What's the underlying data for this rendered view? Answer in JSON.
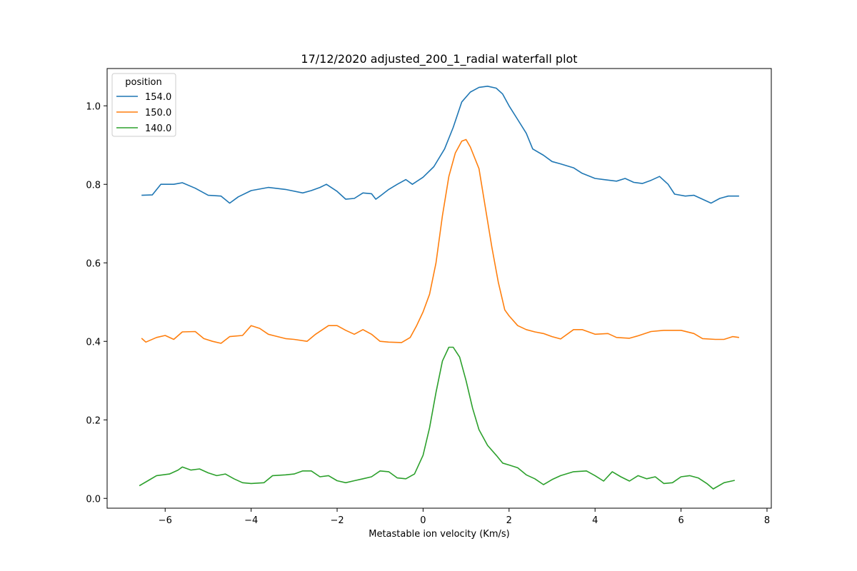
{
  "chart_data": {
    "type": "line",
    "title": "17/12/2020 adjusted_200_1_radial waterfall plot",
    "xlabel": "Metastable ion velocity (Km/s)",
    "ylabel": "",
    "xlim": [
      -7.35,
      8.1
    ],
    "ylim": [
      -0.025,
      1.095
    ],
    "xticks": [
      -6,
      -4,
      -2,
      0,
      2,
      4,
      6,
      8
    ],
    "xtick_labels": [
      "−6",
      "−4",
      "−2",
      "0",
      "2",
      "4",
      "6",
      "8"
    ],
    "yticks": [
      0.0,
      0.2,
      0.4,
      0.6,
      0.8,
      1.0
    ],
    "ytick_labels": [
      "0.0",
      "0.2",
      "0.4",
      "0.6",
      "0.8",
      "1.0"
    ],
    "grid": false,
    "legend": {
      "title": "position",
      "placement": "upper-left"
    },
    "series": [
      {
        "name": "154.0",
        "color": "#1f77b4",
        "points": [
          [
            -6.55,
            0.772
          ],
          [
            -6.3,
            0.773
          ],
          [
            -6.1,
            0.8
          ],
          [
            -5.8,
            0.8
          ],
          [
            -5.6,
            0.804
          ],
          [
            -5.3,
            0.79
          ],
          [
            -5.0,
            0.772
          ],
          [
            -4.7,
            0.77
          ],
          [
            -4.5,
            0.752
          ],
          [
            -4.3,
            0.768
          ],
          [
            -4.0,
            0.784
          ],
          [
            -3.6,
            0.792
          ],
          [
            -3.2,
            0.787
          ],
          [
            -2.8,
            0.778
          ],
          [
            -2.6,
            0.784
          ],
          [
            -2.4,
            0.792
          ],
          [
            -2.25,
            0.8
          ],
          [
            -2.0,
            0.782
          ],
          [
            -1.8,
            0.762
          ],
          [
            -1.6,
            0.764
          ],
          [
            -1.4,
            0.778
          ],
          [
            -1.2,
            0.776
          ],
          [
            -1.1,
            0.762
          ],
          [
            -1.0,
            0.77
          ],
          [
            -0.8,
            0.787
          ],
          [
            -0.6,
            0.8
          ],
          [
            -0.4,
            0.812
          ],
          [
            -0.25,
            0.8
          ],
          [
            0.0,
            0.818
          ],
          [
            0.25,
            0.845
          ],
          [
            0.5,
            0.89
          ],
          [
            0.7,
            0.945
          ],
          [
            0.9,
            1.01
          ],
          [
            1.1,
            1.035
          ],
          [
            1.3,
            1.047
          ],
          [
            1.5,
            1.05
          ],
          [
            1.7,
            1.045
          ],
          [
            1.85,
            1.03
          ],
          [
            2.0,
            1.0
          ],
          [
            2.2,
            0.965
          ],
          [
            2.4,
            0.93
          ],
          [
            2.55,
            0.89
          ],
          [
            2.8,
            0.874
          ],
          [
            3.0,
            0.858
          ],
          [
            3.2,
            0.852
          ],
          [
            3.5,
            0.842
          ],
          [
            3.7,
            0.828
          ],
          [
            4.0,
            0.815
          ],
          [
            4.2,
            0.812
          ],
          [
            4.5,
            0.808
          ],
          [
            4.7,
            0.815
          ],
          [
            4.9,
            0.805
          ],
          [
            5.1,
            0.802
          ],
          [
            5.3,
            0.81
          ],
          [
            5.5,
            0.82
          ],
          [
            5.7,
            0.8
          ],
          [
            5.85,
            0.775
          ],
          [
            6.1,
            0.77
          ],
          [
            6.3,
            0.772
          ],
          [
            6.5,
            0.762
          ],
          [
            6.7,
            0.752
          ],
          [
            6.9,
            0.764
          ],
          [
            7.1,
            0.77
          ],
          [
            7.35,
            0.77
          ]
        ]
      },
      {
        "name": "150.0",
        "color": "#ff7f0e",
        "points": [
          [
            -6.55,
            0.408
          ],
          [
            -6.45,
            0.398
          ],
          [
            -6.2,
            0.41
          ],
          [
            -6.0,
            0.415
          ],
          [
            -5.8,
            0.405
          ],
          [
            -5.6,
            0.424
          ],
          [
            -5.3,
            0.425
          ],
          [
            -5.1,
            0.407
          ],
          [
            -4.9,
            0.4
          ],
          [
            -4.7,
            0.395
          ],
          [
            -4.5,
            0.412
          ],
          [
            -4.2,
            0.415
          ],
          [
            -4.0,
            0.44
          ],
          [
            -3.8,
            0.433
          ],
          [
            -3.6,
            0.418
          ],
          [
            -3.2,
            0.407
          ],
          [
            -3.0,
            0.405
          ],
          [
            -2.7,
            0.4
          ],
          [
            -2.5,
            0.418
          ],
          [
            -2.2,
            0.44
          ],
          [
            -2.0,
            0.44
          ],
          [
            -1.8,
            0.428
          ],
          [
            -1.6,
            0.418
          ],
          [
            -1.4,
            0.43
          ],
          [
            -1.2,
            0.418
          ],
          [
            -1.0,
            0.4
          ],
          [
            -0.8,
            0.398
          ],
          [
            -0.5,
            0.397
          ],
          [
            -0.3,
            0.41
          ],
          [
            -0.15,
            0.44
          ],
          [
            0.0,
            0.475
          ],
          [
            0.15,
            0.52
          ],
          [
            0.3,
            0.6
          ],
          [
            0.45,
            0.72
          ],
          [
            0.6,
            0.82
          ],
          [
            0.75,
            0.88
          ],
          [
            0.9,
            0.91
          ],
          [
            1.0,
            0.914
          ],
          [
            1.1,
            0.895
          ],
          [
            1.3,
            0.84
          ],
          [
            1.45,
            0.74
          ],
          [
            1.6,
            0.64
          ],
          [
            1.75,
            0.55
          ],
          [
            1.9,
            0.48
          ],
          [
            2.0,
            0.465
          ],
          [
            2.2,
            0.44
          ],
          [
            2.4,
            0.43
          ],
          [
            2.6,
            0.424
          ],
          [
            2.8,
            0.42
          ],
          [
            3.0,
            0.412
          ],
          [
            3.2,
            0.406
          ],
          [
            3.5,
            0.43
          ],
          [
            3.7,
            0.43
          ],
          [
            4.0,
            0.418
          ],
          [
            4.3,
            0.42
          ],
          [
            4.5,
            0.41
          ],
          [
            4.8,
            0.408
          ],
          [
            5.0,
            0.414
          ],
          [
            5.3,
            0.425
          ],
          [
            5.6,
            0.428
          ],
          [
            6.0,
            0.428
          ],
          [
            6.3,
            0.42
          ],
          [
            6.5,
            0.407
          ],
          [
            6.8,
            0.405
          ],
          [
            7.0,
            0.405
          ],
          [
            7.2,
            0.412
          ],
          [
            7.35,
            0.41
          ]
        ]
      },
      {
        "name": "140.0",
        "color": "#2ca02c",
        "points": [
          [
            -6.6,
            0.032
          ],
          [
            -6.4,
            0.045
          ],
          [
            -6.2,
            0.058
          ],
          [
            -5.9,
            0.062
          ],
          [
            -5.7,
            0.072
          ],
          [
            -5.6,
            0.08
          ],
          [
            -5.4,
            0.072
          ],
          [
            -5.2,
            0.075
          ],
          [
            -5.0,
            0.065
          ],
          [
            -4.8,
            0.058
          ],
          [
            -4.6,
            0.062
          ],
          [
            -4.4,
            0.05
          ],
          [
            -4.2,
            0.04
          ],
          [
            -4.0,
            0.038
          ],
          [
            -3.7,
            0.04
          ],
          [
            -3.5,
            0.058
          ],
          [
            -3.2,
            0.06
          ],
          [
            -3.0,
            0.062
          ],
          [
            -2.8,
            0.07
          ],
          [
            -2.6,
            0.07
          ],
          [
            -2.4,
            0.055
          ],
          [
            -2.2,
            0.058
          ],
          [
            -2.0,
            0.045
          ],
          [
            -1.8,
            0.04
          ],
          [
            -1.6,
            0.045
          ],
          [
            -1.4,
            0.05
          ],
          [
            -1.2,
            0.055
          ],
          [
            -1.0,
            0.07
          ],
          [
            -0.8,
            0.068
          ],
          [
            -0.6,
            0.052
          ],
          [
            -0.4,
            0.05
          ],
          [
            -0.2,
            0.062
          ],
          [
            0.0,
            0.11
          ],
          [
            0.15,
            0.18
          ],
          [
            0.3,
            0.27
          ],
          [
            0.45,
            0.35
          ],
          [
            0.6,
            0.385
          ],
          [
            0.7,
            0.385
          ],
          [
            0.85,
            0.36
          ],
          [
            1.0,
            0.3
          ],
          [
            1.15,
            0.23
          ],
          [
            1.3,
            0.175
          ],
          [
            1.5,
            0.135
          ],
          [
            1.7,
            0.11
          ],
          [
            1.85,
            0.09
          ],
          [
            2.0,
            0.085
          ],
          [
            2.2,
            0.078
          ],
          [
            2.4,
            0.06
          ],
          [
            2.6,
            0.05
          ],
          [
            2.8,
            0.035
          ],
          [
            3.0,
            0.048
          ],
          [
            3.2,
            0.058
          ],
          [
            3.5,
            0.068
          ],
          [
            3.8,
            0.07
          ],
          [
            4.0,
            0.058
          ],
          [
            4.2,
            0.044
          ],
          [
            4.4,
            0.068
          ],
          [
            4.6,
            0.055
          ],
          [
            4.8,
            0.044
          ],
          [
            5.0,
            0.058
          ],
          [
            5.2,
            0.05
          ],
          [
            5.4,
            0.055
          ],
          [
            5.6,
            0.038
          ],
          [
            5.8,
            0.04
          ],
          [
            6.0,
            0.055
          ],
          [
            6.2,
            0.058
          ],
          [
            6.4,
            0.052
          ],
          [
            6.6,
            0.038
          ],
          [
            6.75,
            0.024
          ],
          [
            7.0,
            0.04
          ],
          [
            7.25,
            0.046
          ]
        ]
      }
    ]
  }
}
